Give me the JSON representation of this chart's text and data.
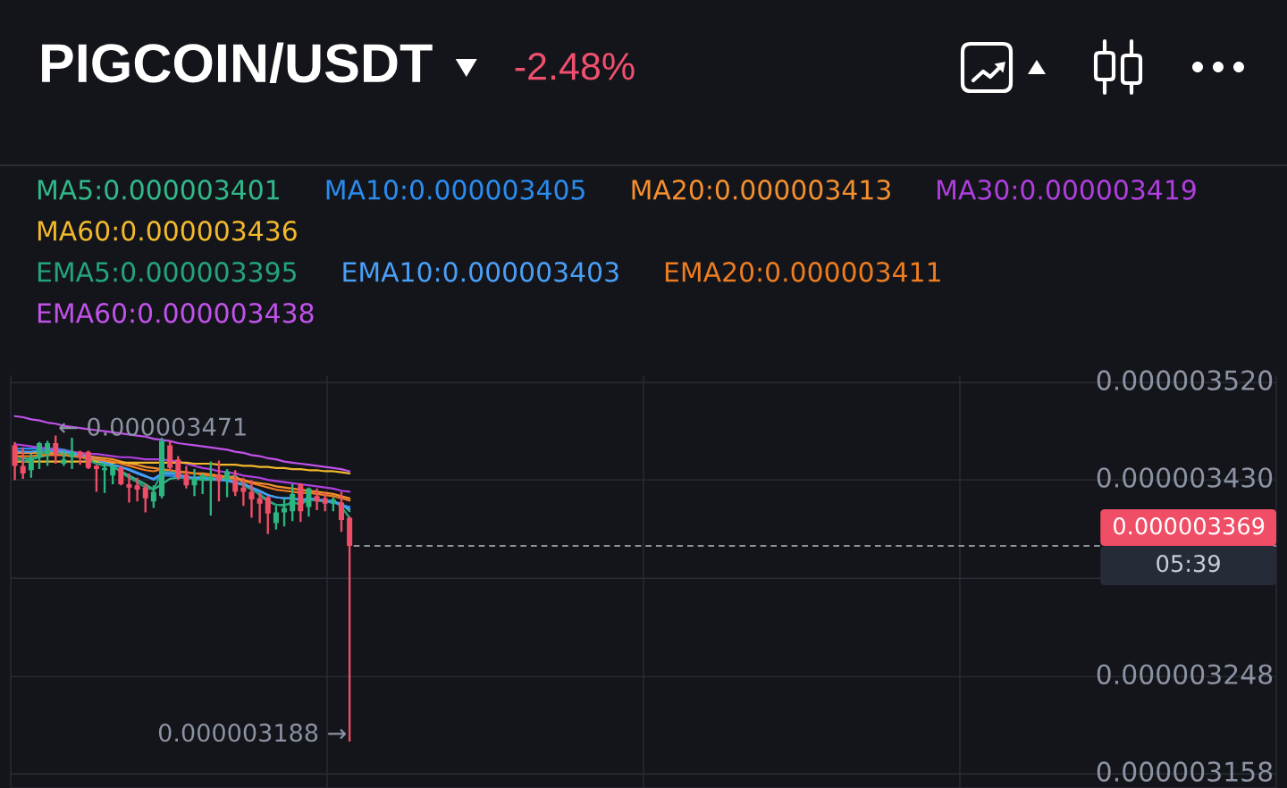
{
  "chart_data": {
    "type": "candlestick",
    "title": "PIGCOIN/USDT",
    "subtitle": "-2.48%",
    "categories": [
      null,
      null,
      null,
      null,
      null,
      null,
      null,
      null,
      null,
      null,
      null,
      null,
      null,
      null,
      null,
      null,
      null,
      null,
      null,
      null,
      null,
      null,
      null,
      null,
      null,
      null,
      null,
      null,
      null,
      null,
      null,
      null,
      null,
      null,
      null,
      null,
      null,
      null,
      null,
      null,
      null,
      null,
      null,
      null,
      null,
      null,
      null,
      null,
      null,
      null,
      null,
      null,
      null,
      null,
      null,
      null,
      null,
      null,
      null,
      null,
      null,
      null,
      null,
      null,
      null,
      null,
      null,
      null,
      null,
      null,
      null,
      null,
      null,
      null,
      null,
      null,
      null,
      null,
      null,
      null,
      null,
      null,
      null,
      null,
      null,
      null,
      null,
      null,
      null,
      null,
      null,
      null,
      null,
      null,
      null,
      null,
      null,
      null,
      null,
      null,
      null,
      null,
      null,
      null,
      null,
      null,
      null,
      null,
      null,
      null,
      null,
      null,
      null,
      null,
      null,
      null,
      null,
      null,
      null,
      null,
      null,
      null,
      null,
      null,
      null,
      null,
      null,
      null,
      null,
      null,
      null,
      null,
      null,
      null,
      null,
      null,
      null,
      null,
      null,
      null,
      null,
      null,
      null,
      null,
      null,
      null,
      null,
      null,
      null,
      null,
      null,
      null,
      null,
      null,
      null
    ],
    "ohlc": [
      [
        3.462e-06,
        3.465e-06,
        3.43e-06,
        3.443e-06
      ],
      [
        3.443e-06,
        3.46e-06,
        3.431e-06,
        3.436e-06
      ],
      [
        3.439e-06,
        3.454e-06,
        3.432e-06,
        3.451e-06
      ],
      [
        3.451e-06,
        3.465e-06,
        3.44e-06,
        3.464e-06
      ],
      [
        3.454e-06,
        3.466e-06,
        3.443e-06,
        3.464e-06
      ],
      [
        3.464e-06,
        3.471e-06,
        3.445e-06,
        3.453e-06
      ],
      [
        3.445e-06,
        3.458e-06,
        3.443e-06,
        3.449e-06
      ],
      [
        3.451e-06,
        3.469e-06,
        3.44e-06,
        3.456e-06
      ],
      [
        3.456e-06,
        3.457e-06,
        3.444e-06,
        3.451e-06
      ],
      [
        3.456e-06,
        3.457e-06,
        3.44e-06,
        3.441e-06
      ],
      [
        3.443e-06,
        3.444e-06,
        3.419e-06,
        3.44e-06
      ],
      [
        3.439e-06,
        3.445e-06,
        3.418e-06,
        3.441e-06
      ],
      [
        3.434e-06,
        3.444e-06,
        3.426e-06,
        3.443e-06
      ],
      [
        3.441e-06,
        3.443e-06,
        3.425e-06,
        3.426e-06
      ],
      [
        3.426e-06,
        3.436e-06,
        3.409e-06,
        3.423e-06
      ],
      [
        3.425e-06,
        3.432e-06,
        3.41e-06,
        3.421e-06
      ],
      [
        3.423e-06,
        3.426e-06,
        3.4e-06,
        3.413e-06
      ],
      [
        3.41e-06,
        3.425e-06,
        3.404e-06,
        3.419e-06
      ],
      [
        3.415e-06,
        3.469e-06,
        3.413e-06,
        3.466e-06
      ],
      [
        3.462e-06,
        3.466e-06,
        3.438e-06,
        3.441e-06
      ],
      [
        3.449e-06,
        3.452e-06,
        3.43e-06,
        3.432e-06
      ],
      [
        3.435e-06,
        3.443e-06,
        3.422e-06,
        3.425e-06
      ],
      [
        3.425e-06,
        3.44e-06,
        3.415e-06,
        3.431e-06
      ],
      [
        3.43e-06,
        3.436e-06,
        3.417e-06,
        3.434e-06
      ],
      [
        3.43e-06,
        3.447e-06,
        3.397e-06,
        3.432e-06
      ],
      [
        3.435e-06,
        3.448e-06,
        3.41e-06,
        3.429e-06
      ],
      [
        3.43e-06,
        3.44e-06,
        3.414e-06,
        3.438e-06
      ],
      [
        3.43e-06,
        3.439e-06,
        3.415e-06,
        3.419e-06
      ],
      [
        3.423e-06,
        3.432e-06,
        3.406e-06,
        3.419e-06
      ],
      [
        3.419e-06,
        3.43e-06,
        3.395e-06,
        3.412e-06
      ],
      [
        3.413e-06,
        3.418e-06,
        3.39e-06,
        3.408e-06
      ],
      [
        3.414e-06,
        3.415e-06,
        3.38e-06,
        3.399e-06
      ],
      [
        3.39e-06,
        3.406e-06,
        3.384e-06,
        3.4e-06
      ],
      [
        3.4e-06,
        3.414e-06,
        3.387e-06,
        3.404e-06
      ],
      [
        3.401e-06,
        3.426e-06,
        3.392e-06,
        3.417e-06
      ],
      [
        3.426e-06,
        3.427e-06,
        3.391e-06,
        3.401e-06
      ],
      [
        3.405e-06,
        3.423e-06,
        3.396e-06,
        3.422e-06
      ],
      [
        3.415e-06,
        3.422e-06,
        3.402e-06,
        3.41e-06
      ],
      [
        3.413e-06,
        3.419e-06,
        3.401e-06,
        3.408e-06
      ],
      [
        3.408e-06,
        3.414e-06,
        3.401e-06,
        3.412e-06
      ],
      [
        3.409e-06,
        3.419e-06,
        3.382e-06,
        3.393e-06
      ],
      [
        3.395e-06,
        3.396e-06,
        3.188e-06,
        3.369e-06
      ],
      null,
      null,
      null,
      null,
      null,
      null,
      null,
      null,
      null,
      null,
      null,
      null,
      null,
      null,
      null,
      null,
      null,
      null,
      null,
      null,
      null,
      null,
      null,
      null,
      null,
      null,
      null,
      null,
      null,
      null,
      null,
      null,
      null,
      null,
      null,
      null,
      null,
      null,
      null,
      null,
      null,
      null,
      null,
      null,
      null,
      null,
      null,
      null,
      null,
      null,
      null,
      null,
      null,
      null,
      null,
      null,
      null,
      null,
      null,
      null,
      null,
      null,
      null,
      null,
      null,
      null,
      null,
      null,
      null,
      null,
      null,
      null,
      null,
      null,
      null,
      null,
      null,
      null,
      null,
      null,
      null,
      null,
      null,
      null,
      null,
      null,
      null,
      null,
      null,
      null,
      null,
      null,
      null,
      null,
      null,
      null,
      null,
      null,
      null,
      null,
      null,
      null,
      null,
      null,
      null,
      null,
      null,
      null,
      null,
      null,
      null,
      null,
      null
    ],
    "colors": [
      "#ef4e66",
      "#ef4e66",
      "#2db580",
      "#2db580",
      "#2db580",
      "#ef4e66",
      "#2db580",
      "#2db580",
      "#ef4e66",
      "#ef4e66",
      "#ef4e66",
      "#2db580",
      "#2db580",
      "#ef4e66",
      "#ef4e66",
      "#ef4e66",
      "#ef4e66",
      "#2db580",
      "#2db580",
      "#ef4e66",
      "#ef4e66",
      "#ef4e66",
      "#2db580",
      "#2db580",
      "#2db580",
      "#ef4e66",
      "#2db580",
      "#ef4e66",
      "#ef4e66",
      "#ef4e66",
      "#ef4e66",
      "#ef4e66",
      "#2db580",
      "#2db580",
      "#2db580",
      "#ef4e66",
      "#2db580",
      "#ef4e66",
      "#ef4e66",
      "#2db580",
      "#ef4e66",
      "#ef4e66",
      null,
      null,
      null,
      null,
      null,
      null,
      null,
      null,
      null,
      null,
      null,
      null,
      null,
      null,
      null,
      null,
      null,
      null,
      null,
      null,
      null,
      null,
      null,
      null,
      null,
      null,
      null,
      null,
      null,
      null,
      null,
      null,
      null,
      null,
      null,
      null,
      null,
      null,
      null,
      null,
      null,
      null,
      null,
      null,
      null,
      null,
      null,
      null,
      null,
      null,
      null,
      null,
      null,
      null,
      null,
      null,
      null,
      null,
      null,
      null,
      null,
      null,
      null,
      null,
      null,
      null,
      null,
      null,
      null,
      null,
      null,
      null,
      null,
      null,
      null,
      null,
      null,
      null,
      null,
      null,
      null,
      null,
      null,
      null,
      null,
      null,
      null,
      null,
      null,
      null,
      null,
      null,
      null,
      null,
      null,
      null,
      null,
      null,
      null,
      null,
      null,
      null,
      null,
      null,
      null,
      null,
      null,
      null,
      null,
      null,
      null,
      null,
      null
    ],
    "series": [
      {
        "type": "line",
        "name": "MA5:0.000003401",
        "color": "#30b98a",
        "values": [
          3.453e-06,
          3.45e-06,
          3.449e-06,
          3.451e-06,
          3.453e-06,
          3.454e-06,
          3.455e-06,
          3.454e-06,
          3.452e-06,
          3.45e-06,
          3.447e-06,
          3.445e-06,
          3.442e-06,
          3.438e-06,
          3.434e-06,
          3.43e-06,
          3.426e-06,
          3.421e-06,
          3.426e-06,
          3.431e-06,
          3.432e-06,
          3.432e-06,
          3.431e-06,
          3.43e-06,
          3.43e-06,
          3.43e-06,
          3.432e-06,
          3.434e-06,
          3.427e-06,
          3.423e-06,
          3.416e-06,
          3.41e-06,
          3.407e-06,
          3.407e-06,
          3.408e-06,
          3.409e-06,
          3.412e-06,
          3.412e-06,
          3.41e-06,
          3.41e-06,
          3.408e-06,
          3.401e-06,
          null,
          null,
          null,
          null,
          null,
          null,
          null,
          null,
          null,
          null,
          null,
          null,
          null,
          null,
          null,
          null,
          null,
          null,
          null,
          null,
          null,
          null,
          null,
          null,
          null,
          null,
          null,
          null,
          null,
          null,
          null,
          null,
          null,
          null,
          null,
          null,
          null,
          null,
          null,
          null,
          null,
          null,
          null,
          null,
          null,
          null,
          null,
          null,
          null,
          null,
          null,
          null,
          null,
          null,
          null,
          null,
          null,
          null,
          null,
          null,
          null,
          null,
          null,
          null,
          null,
          null,
          null,
          null,
          null,
          null,
          null,
          null,
          null,
          null,
          null,
          null,
          null,
          null,
          null,
          null,
          null,
          null,
          null,
          null,
          null,
          null,
          null,
          null,
          null,
          null,
          null,
          null,
          null,
          null,
          null,
          null,
          null,
          null,
          null,
          null,
          null,
          null,
          null,
          null,
          null,
          null,
          null,
          null,
          null,
          null,
          null,
          null,
          null
        ]
      },
      {
        "type": "line",
        "name": "MA10:0.000003405",
        "color": "#2a8cf0",
        "values": [
          3.459e-06,
          3.459e-06,
          3.459e-06,
          3.459e-06,
          3.459e-06,
          3.459e-06,
          3.458e-06,
          3.456e-06,
          3.454e-06,
          3.452e-06,
          3.45e-06,
          3.448e-06,
          3.444e-06,
          3.442e-06,
          3.44e-06,
          3.437e-06,
          3.434e-06,
          3.43e-06,
          3.434e-06,
          3.434e-06,
          3.433e-06,
          3.432e-06,
          3.432e-06,
          3.431e-06,
          3.431e-06,
          3.43e-06,
          3.429e-06,
          3.427e-06,
          3.425e-06,
          3.422e-06,
          3.419e-06,
          3.416e-06,
          3.414e-06,
          3.413e-06,
          3.413e-06,
          3.412e-06,
          3.412e-06,
          3.411e-06,
          3.41e-06,
          3.409e-06,
          3.407e-06,
          3.405e-06,
          null,
          null,
          null,
          null,
          null,
          null,
          null,
          null,
          null,
          null,
          null,
          null,
          null,
          null,
          null,
          null,
          null,
          null,
          null,
          null,
          null,
          null,
          null,
          null,
          null,
          null,
          null,
          null,
          null,
          null,
          null,
          null,
          null,
          null,
          null,
          null,
          null,
          null,
          null,
          null,
          null,
          null,
          null,
          null,
          null,
          null,
          null,
          null,
          null,
          null,
          null,
          null,
          null,
          null,
          null,
          null,
          null,
          null,
          null,
          null,
          null,
          null,
          null,
          null,
          null,
          null,
          null,
          null,
          null,
          null,
          null,
          null,
          null,
          null,
          null,
          null,
          null,
          null,
          null,
          null,
          null,
          null,
          null,
          null,
          null,
          null,
          null,
          null,
          null,
          null,
          null,
          null,
          null,
          null,
          null,
          null,
          null,
          null,
          null,
          null,
          null,
          null,
          null,
          null,
          null,
          null,
          null,
          null,
          null,
          null,
          null,
          null,
          null
        ]
      },
      {
        "type": "line",
        "name": "MA20:0.000003413",
        "color": "#f5902f",
        "values": [
          3.455e-06,
          3.455e-06,
          3.455e-06,
          3.455e-06,
          3.455e-06,
          3.455e-06,
          3.455e-06,
          3.454e-06,
          3.453e-06,
          3.452e-06,
          3.451e-06,
          3.45e-06,
          3.449e-06,
          3.447e-06,
          3.445e-06,
          3.444e-06,
          3.442e-06,
          3.441e-06,
          3.44e-06,
          3.438e-06,
          3.437e-06,
          3.437e-06,
          3.436e-06,
          3.436e-06,
          3.435e-06,
          3.434e-06,
          3.433e-06,
          3.432e-06,
          3.43e-06,
          3.428e-06,
          3.427e-06,
          3.426e-06,
          3.424e-06,
          3.423e-06,
          3.422e-06,
          3.421e-06,
          3.42e-06,
          3.419e-06,
          3.418e-06,
          3.417e-06,
          3.415e-06,
          3.413e-06,
          null,
          null,
          null,
          null,
          null,
          null,
          null,
          null,
          null,
          null,
          null,
          null,
          null,
          null,
          null,
          null,
          null,
          null,
          null,
          null,
          null,
          null,
          null,
          null,
          null,
          null,
          null,
          null,
          null,
          null,
          null,
          null,
          null,
          null,
          null,
          null,
          null,
          null,
          null,
          null,
          null,
          null,
          null,
          null,
          null,
          null,
          null,
          null,
          null,
          null,
          null,
          null,
          null,
          null,
          null,
          null,
          null,
          null,
          null,
          null,
          null,
          null,
          null,
          null,
          null,
          null,
          null,
          null,
          null,
          null,
          null,
          null,
          null,
          null,
          null,
          null,
          null,
          null,
          null,
          null,
          null,
          null,
          null,
          null,
          null,
          null,
          null,
          null,
          null,
          null,
          null,
          null,
          null,
          null,
          null,
          null,
          null,
          null,
          null,
          null,
          null,
          null,
          null,
          null,
          null,
          null,
          null,
          null,
          null,
          null,
          null,
          null,
          null
        ]
      },
      {
        "type": "line",
        "name": "MA30:0.000003419",
        "color": "#b03fe0",
        "values": [
          3.463e-06,
          3.462e-06,
          3.461e-06,
          3.46e-06,
          3.459e-06,
          3.458e-06,
          3.457e-06,
          3.456e-06,
          3.455e-06,
          3.454e-06,
          3.454e-06,
          3.453e-06,
          3.452e-06,
          3.451e-06,
          3.451e-06,
          3.45e-06,
          3.449e-06,
          3.449e-06,
          3.449e-06,
          3.448e-06,
          3.447e-06,
          3.445e-06,
          3.443e-06,
          3.441e-06,
          3.44e-06,
          3.438e-06,
          3.437e-06,
          3.436e-06,
          3.434e-06,
          3.433e-06,
          3.432e-06,
          3.43e-06,
          3.429e-06,
          3.428e-06,
          3.427e-06,
          3.426e-06,
          3.425e-06,
          3.424e-06,
          3.423e-06,
          3.422e-06,
          3.42e-06,
          3.419e-06,
          null,
          null,
          null,
          null,
          null,
          null,
          null,
          null,
          null,
          null,
          null,
          null,
          null,
          null,
          null,
          null,
          null,
          null,
          null,
          null,
          null,
          null,
          null,
          null,
          null,
          null,
          null,
          null,
          null,
          null,
          null,
          null,
          null,
          null,
          null,
          null,
          null,
          null,
          null,
          null,
          null,
          null,
          null,
          null,
          null,
          null,
          null,
          null,
          null,
          null,
          null,
          null,
          null,
          null,
          null,
          null,
          null,
          null,
          null,
          null,
          null,
          null,
          null,
          null,
          null,
          null,
          null,
          null,
          null,
          null,
          null,
          null,
          null,
          null,
          null,
          null,
          null,
          null,
          null,
          null,
          null,
          null,
          null,
          null,
          null,
          null,
          null,
          null,
          null,
          null,
          null,
          null,
          null,
          null,
          null,
          null,
          null,
          null,
          null,
          null,
          null,
          null,
          null,
          null,
          null,
          null,
          null,
          null,
          null,
          null,
          null,
          null,
          null
        ]
      },
      {
        "type": "line",
        "name": "MA60:0.000003436",
        "color": "#f2b92c",
        "values": [
          3.447e-06,
          3.447e-06,
          3.447e-06,
          3.447e-06,
          3.447e-06,
          3.447e-06,
          3.447e-06,
          3.447e-06,
          3.447e-06,
          3.447e-06,
          3.447e-06,
          3.447e-06,
          3.446e-06,
          3.446e-06,
          3.446e-06,
          3.446e-06,
          3.446e-06,
          3.446e-06,
          3.446e-06,
          3.446e-06,
          3.446e-06,
          3.446e-06,
          3.445e-06,
          3.445e-06,
          3.445e-06,
          3.444e-06,
          3.444e-06,
          3.444e-06,
          3.443e-06,
          3.443e-06,
          3.442e-06,
          3.442e-06,
          3.441e-06,
          3.441e-06,
          3.44e-06,
          3.44e-06,
          3.439e-06,
          3.439e-06,
          3.438e-06,
          3.438e-06,
          3.437e-06,
          3.436e-06,
          null,
          null,
          null,
          null,
          null,
          null,
          null,
          null,
          null,
          null,
          null,
          null,
          null,
          null,
          null,
          null,
          null,
          null,
          null,
          null,
          null,
          null,
          null,
          null,
          null,
          null,
          null,
          null,
          null,
          null,
          null,
          null,
          null,
          null,
          null,
          null,
          null,
          null,
          null,
          null,
          null,
          null,
          null,
          null,
          null,
          null,
          null,
          null,
          null,
          null,
          null,
          null,
          null,
          null,
          null,
          null,
          null,
          null,
          null,
          null,
          null,
          null,
          null,
          null,
          null,
          null,
          null,
          null,
          null,
          null,
          null,
          null,
          null,
          null,
          null,
          null,
          null,
          null,
          null,
          null,
          null,
          null,
          null,
          null,
          null,
          null,
          null,
          null,
          null,
          null,
          null,
          null,
          null,
          null,
          null,
          null,
          null,
          null,
          null,
          null,
          null,
          null,
          null,
          null,
          null,
          null,
          null,
          null,
          null,
          null,
          null,
          null,
          null
        ]
      },
      {
        "type": "line",
        "name": "EMA5:0.000003395",
        "color": "#23a57c",
        "values": [
          3.451e-06,
          3.447e-06,
          3.449e-06,
          3.453e-06,
          3.456e-06,
          3.457e-06,
          3.452e-06,
          3.456e-06,
          3.452e-06,
          3.448e-06,
          3.445e-06,
          3.443e-06,
          3.444e-06,
          3.437e-06,
          3.432e-06,
          3.428e-06,
          3.423e-06,
          3.421e-06,
          3.437e-06,
          3.438e-06,
          3.436e-06,
          3.431e-06,
          3.432e-06,
          3.433e-06,
          3.432e-06,
          3.431e-06,
          3.433e-06,
          3.428e-06,
          3.425e-06,
          3.421e-06,
          3.417e-06,
          3.411e-06,
          3.407e-06,
          3.406e-06,
          3.41e-06,
          3.407e-06,
          3.412e-06,
          3.411e-06,
          3.41e-06,
          3.411e-06,
          3.405e-06,
          3.395e-06,
          null,
          null,
          null,
          null,
          null,
          null,
          null,
          null,
          null,
          null,
          null,
          null,
          null,
          null,
          null,
          null,
          null,
          null,
          null,
          null,
          null,
          null,
          null,
          null,
          null,
          null,
          null,
          null,
          null,
          null,
          null,
          null,
          null,
          null,
          null,
          null,
          null,
          null,
          null,
          null,
          null,
          null,
          null,
          null,
          null,
          null,
          null,
          null,
          null,
          null,
          null,
          null,
          null,
          null,
          null,
          null,
          null,
          null,
          null,
          null,
          null,
          null,
          null,
          null,
          null,
          null,
          null,
          null,
          null,
          null,
          null,
          null,
          null,
          null,
          null,
          null,
          null,
          null,
          null,
          null,
          null,
          null,
          null,
          null,
          null,
          null,
          null,
          null,
          null,
          null,
          null,
          null,
          null,
          null,
          null,
          null,
          null,
          null,
          null,
          null,
          null,
          null,
          null,
          null,
          null,
          null,
          null,
          null,
          null,
          null,
          null,
          null,
          null
        ]
      },
      {
        "type": "line",
        "name": "EMA10:0.000003403",
        "color": "#4a9ff7",
        "values": [
          3.457e-06,
          3.456e-06,
          3.456e-06,
          3.457e-06,
          3.457e-06,
          3.457e-06,
          3.456e-06,
          3.455e-06,
          3.453e-06,
          3.451e-06,
          3.449e-06,
          3.446e-06,
          3.444e-06,
          3.442e-06,
          3.439e-06,
          3.436e-06,
          3.433e-06,
          3.431e-06,
          3.436e-06,
          3.436e-06,
          3.435e-06,
          3.433e-06,
          3.432e-06,
          3.432e-06,
          3.431e-06,
          3.43e-06,
          3.43e-06,
          3.428e-06,
          3.426e-06,
          3.423e-06,
          3.42e-06,
          3.416e-06,
          3.414e-06,
          3.413e-06,
          3.413e-06,
          3.411e-06,
          3.413e-06,
          3.412e-06,
          3.411e-06,
          3.41e-06,
          3.407e-06,
          3.403e-06,
          null,
          null,
          null,
          null,
          null,
          null,
          null,
          null,
          null,
          null,
          null,
          null,
          null,
          null,
          null,
          null,
          null,
          null,
          null,
          null,
          null,
          null,
          null,
          null,
          null,
          null,
          null,
          null,
          null,
          null,
          null,
          null,
          null,
          null,
          null,
          null,
          null,
          null,
          null,
          null,
          null,
          null,
          null,
          null,
          null,
          null,
          null,
          null,
          null,
          null,
          null,
          null,
          null,
          null,
          null,
          null,
          null,
          null,
          null,
          null,
          null,
          null,
          null,
          null,
          null,
          null,
          null,
          null,
          null,
          null,
          null,
          null,
          null,
          null,
          null,
          null,
          null,
          null,
          null,
          null,
          null,
          null,
          null,
          null,
          null,
          null,
          null,
          null,
          null,
          null,
          null,
          null,
          null,
          null,
          null,
          null,
          null,
          null,
          null,
          null,
          null,
          null,
          null,
          null,
          null,
          null,
          null,
          null,
          null,
          null,
          null,
          null,
          null
        ]
      },
      {
        "type": "line",
        "name": "EMA20:0.000003411",
        "color": "#ee7d22",
        "values": [
          3.452e-06,
          3.452e-06,
          3.452e-06,
          3.453e-06,
          3.453e-06,
          3.453e-06,
          3.453e-06,
          3.452e-06,
          3.451e-06,
          3.45e-06,
          3.449e-06,
          3.448e-06,
          3.447e-06,
          3.445e-06,
          3.443e-06,
          3.441e-06,
          3.439e-06,
          3.438e-06,
          3.44e-06,
          3.439e-06,
          3.438e-06,
          3.437e-06,
          3.436e-06,
          3.435e-06,
          3.434e-06,
          3.433e-06,
          3.432e-06,
          3.431e-06,
          3.429e-06,
          3.427e-06,
          3.425e-06,
          3.423e-06,
          3.421e-06,
          3.42e-06,
          3.419e-06,
          3.418e-06,
          3.418e-06,
          3.417e-06,
          3.416e-06,
          3.415e-06,
          3.413e-06,
          3.411e-06,
          null,
          null,
          null,
          null,
          null,
          null,
          null,
          null,
          null,
          null,
          null,
          null,
          null,
          null,
          null,
          null,
          null,
          null,
          null,
          null,
          null,
          null,
          null,
          null,
          null,
          null,
          null,
          null,
          null,
          null,
          null,
          null,
          null,
          null,
          null,
          null,
          null,
          null,
          null,
          null,
          null,
          null,
          null,
          null,
          null,
          null,
          null,
          null,
          null,
          null,
          null,
          null,
          null,
          null,
          null,
          null,
          null,
          null,
          null,
          null,
          null,
          null,
          null,
          null,
          null,
          null,
          null,
          null,
          null,
          null,
          null,
          null,
          null,
          null,
          null,
          null,
          null,
          null,
          null,
          null,
          null,
          null,
          null,
          null,
          null,
          null,
          null,
          null,
          null,
          null,
          null,
          null,
          null,
          null,
          null,
          null,
          null,
          null,
          null,
          null,
          null,
          null,
          null,
          null,
          null,
          null,
          null,
          null,
          null,
          null,
          null,
          null,
          null
        ]
      },
      {
        "type": "line",
        "name": "EMA60:0.000003438",
        "color": "#c052ea",
        "values": [
          3.489e-06,
          3.488e-06,
          3.486e-06,
          3.485e-06,
          3.483e-06,
          3.482e-06,
          3.48e-06,
          3.479e-06,
          3.478e-06,
          3.477e-06,
          3.476e-06,
          3.475e-06,
          3.474e-06,
          3.473e-06,
          3.472e-06,
          3.471e-06,
          3.47e-06,
          3.468e-06,
          3.467e-06,
          3.466e-06,
          3.464e-06,
          3.463e-06,
          3.462e-06,
          3.461e-06,
          3.46e-06,
          3.459e-06,
          3.458e-06,
          3.456e-06,
          3.455e-06,
          3.453e-06,
          3.452e-06,
          3.45e-06,
          3.449e-06,
          3.447e-06,
          3.446e-06,
          3.445e-06,
          3.444e-06,
          3.443e-06,
          3.442e-06,
          3.441e-06,
          3.44e-06,
          3.438e-06,
          null,
          null,
          null,
          null,
          null,
          null,
          null,
          null,
          null,
          null,
          null,
          null,
          null,
          null,
          null,
          null,
          null,
          null,
          null,
          null,
          null,
          null,
          null,
          null,
          null,
          null,
          null,
          null,
          null,
          null,
          null,
          null,
          null,
          null,
          null,
          null,
          null,
          null,
          null,
          null,
          null,
          null,
          null,
          null,
          null,
          null,
          null,
          null,
          null,
          null,
          null,
          null,
          null,
          null,
          null,
          null,
          null,
          null,
          null,
          null,
          null,
          null,
          null,
          null,
          null,
          null,
          null,
          null,
          null,
          null,
          null,
          null,
          null,
          null,
          null,
          null,
          null,
          null,
          null,
          null,
          null,
          null,
          null,
          null,
          null,
          null,
          null,
          null,
          null,
          null,
          null,
          null,
          null,
          null,
          null,
          null,
          null,
          null,
          null,
          null,
          null,
          null,
          null,
          null,
          null,
          null,
          null,
          null,
          null,
          null,
          null,
          null,
          null
        ]
      }
    ],
    "ylim": [
      3.145e-06,
      3.526e-06
    ],
    "yticks": [
      {
        "value": 3.52e-06,
        "label": "0.000003520"
      },
      {
        "value": 3.43e-06,
        "label": "0.000003430"
      },
      {
        "value": 3.339e-06,
        "label": null
      },
      {
        "value": 3.248e-06,
        "label": "0.000003248"
      },
      {
        "value": 3.158e-06,
        "label": "0.000003158"
      }
    ],
    "tick_labels": "y",
    "grid": true,
    "legend": "top",
    "ref_lines": [
      {
        "axis": "y",
        "value": 3.369e-06,
        "label": "0.000003369",
        "color": "#b8bcc6",
        "line_style": "dashed"
      }
    ],
    "annotations": [
      "05:39",
      "0.000003188 →",
      {
        "text": "← 0.000003471",
        "y": 3.471e-06
      }
    ]
  }
}
